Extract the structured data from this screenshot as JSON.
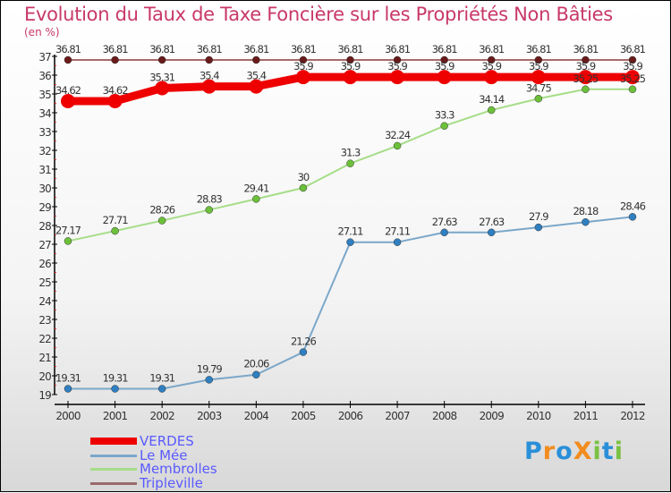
{
  "title": "Evolution du Taux de Taxe Foncière sur les Propriétés Non Bâties",
  "unit": "(en %)",
  "logo": {
    "text": "ProXiti",
    "letters": [
      "P",
      "r",
      "o",
      "X",
      "i",
      "t",
      "i"
    ],
    "colors": [
      "#2a8fd8",
      "#f28c1e",
      "#2a8fd8",
      "#f28c1e",
      "#7ac143",
      "#2a8fd8",
      "#7ac143"
    ]
  },
  "chart_data": {
    "type": "line",
    "title": "Evolution du Taux de Taxe Foncière sur les Propriétés Non Bâties",
    "ylabel": "(en %)",
    "x": [
      2000,
      2001,
      2002,
      2003,
      2004,
      2005,
      2006,
      2007,
      2008,
      2009,
      2010,
      2011,
      2012
    ],
    "ylim": [
      19,
      37
    ],
    "yticks": [
      19,
      20,
      21,
      22,
      23,
      24,
      25,
      26,
      27,
      28,
      29,
      30,
      31,
      32,
      33,
      34,
      35,
      36,
      37
    ],
    "legend_position": "bottom-left",
    "series": [
      {
        "name": "VERDES",
        "color": "#ee0000",
        "width": 9,
        "dot": 8,
        "values": [
          34.62,
          34.62,
          35.31,
          35.4,
          35.4,
          35.9,
          35.9,
          35.9,
          35.9,
          35.9,
          35.9,
          35.9,
          35.9
        ]
      },
      {
        "name": "Le Mée",
        "color": "#7ba7c9",
        "dotcolor": "#2f7fc1",
        "width": 2,
        "dot": 4,
        "values": [
          19.31,
          19.31,
          19.31,
          19.79,
          20.06,
          21.26,
          27.11,
          27.11,
          27.63,
          27.63,
          27.9,
          28.18,
          28.46
        ]
      },
      {
        "name": "Membrolles",
        "color": "#a6dd88",
        "dotcolor": "#6cc03a",
        "width": 2,
        "dot": 4,
        "values": [
          27.17,
          27.71,
          28.26,
          28.83,
          29.41,
          30,
          31.3,
          32.24,
          33.3,
          34.14,
          34.75,
          35.25,
          35.25
        ]
      },
      {
        "name": "Tripleville",
        "color": "#8b3a3a",
        "dotcolor": "#6a1a1a",
        "width": 1.5,
        "dot": 4,
        "values": [
          36.81,
          36.81,
          36.81,
          36.81,
          36.81,
          36.81,
          36.81,
          36.81,
          36.81,
          36.81,
          36.81,
          36.81,
          36.81
        ]
      }
    ]
  }
}
